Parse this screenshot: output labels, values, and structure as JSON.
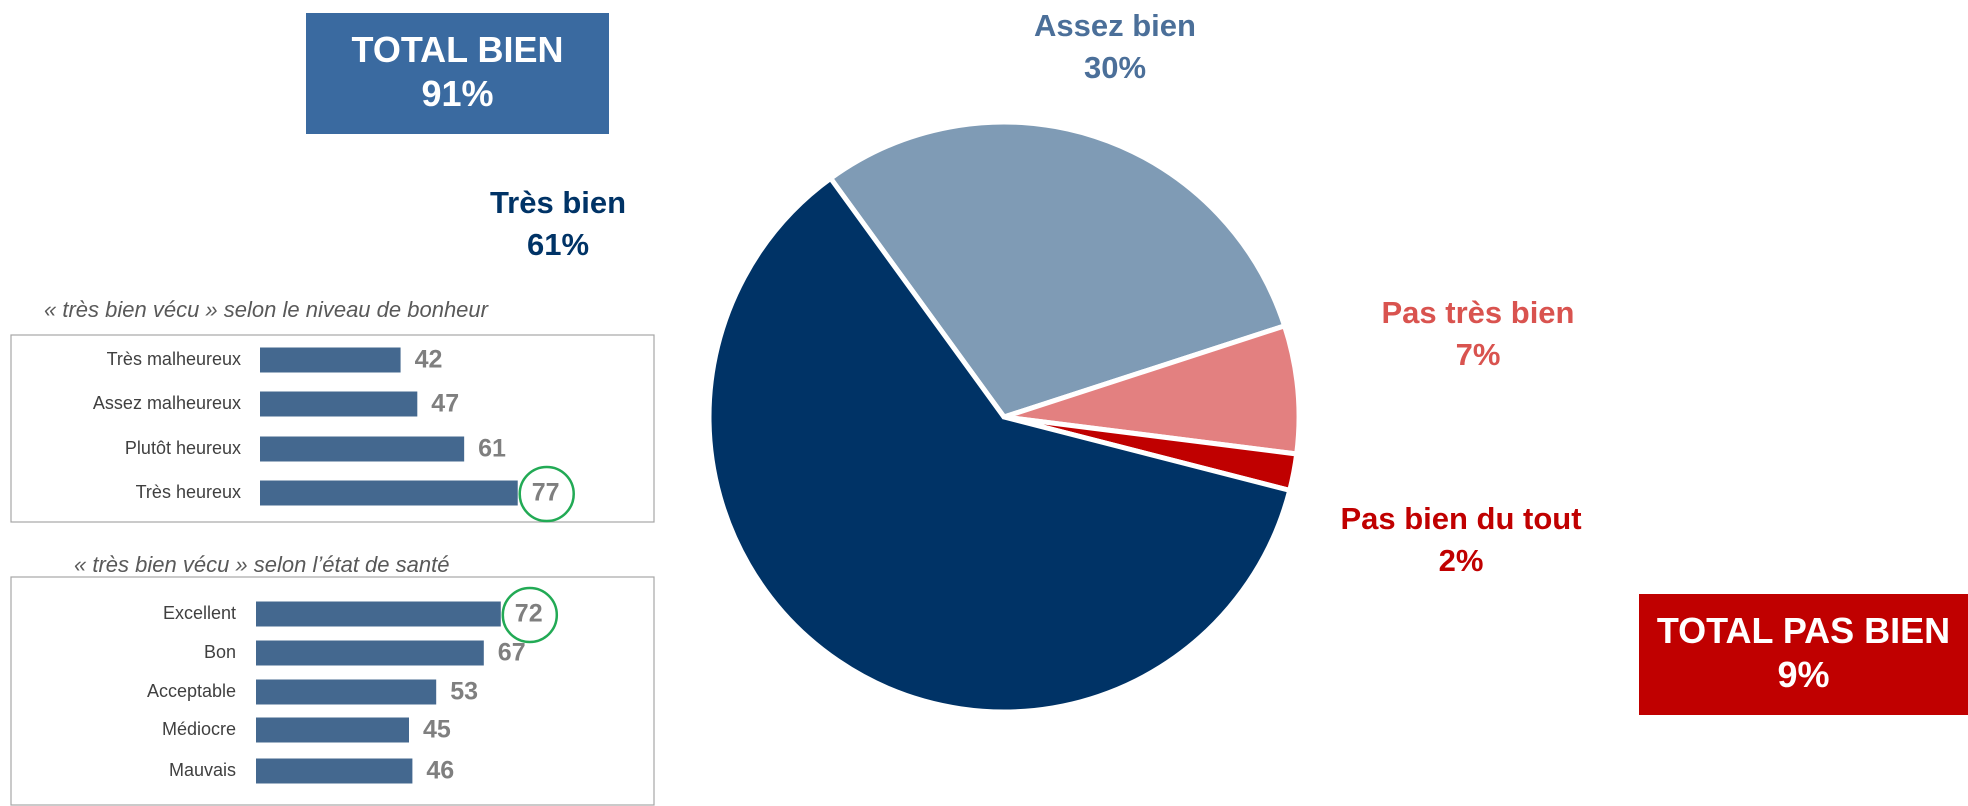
{
  "chart_data": [
    {
      "type": "pie",
      "categories": [
        "Très bien",
        "Assez bien",
        "Pas très bien",
        "Pas bien du tout"
      ],
      "values": [
        61,
        30,
        7,
        2
      ],
      "value_labels": [
        "61%",
        "30%",
        "7%",
        "2%"
      ],
      "colors": [
        "#003366",
        "#7f9bb5",
        "#e38080",
        "#c00000"
      ],
      "label_colors": [
        "#003366",
        "#4b6f99",
        "#d9534f",
        "#c00000"
      ],
      "annotations": [
        {
          "title": "TOTAL BIEN",
          "text": "91%",
          "color": "#3a6aa0"
        },
        {
          "title": "TOTAL PAS BIEN",
          "text": "9%",
          "color": "#c00000"
        }
      ]
    },
    {
      "type": "hbar",
      "subtitle": "« très bien vécu » selon le niveau de bonheur",
      "categories": [
        "Très malheureux",
        "Assez malheureux",
        "Plutôt heureux",
        "Très heureux"
      ],
      "values": [
        42,
        47,
        61,
        77
      ],
      "color": "#44688f",
      "highlight": 3
    },
    {
      "type": "hbar",
      "subtitle": "« très bien vécu » selon l’état de santé",
      "categories": [
        "Excellent",
        "Bon",
        "Acceptable",
        "Médiocre",
        "Mauvais"
      ],
      "values": [
        72,
        67,
        53,
        45,
        46
      ],
      "color": "#44688f",
      "highlight": 0
    }
  ]
}
